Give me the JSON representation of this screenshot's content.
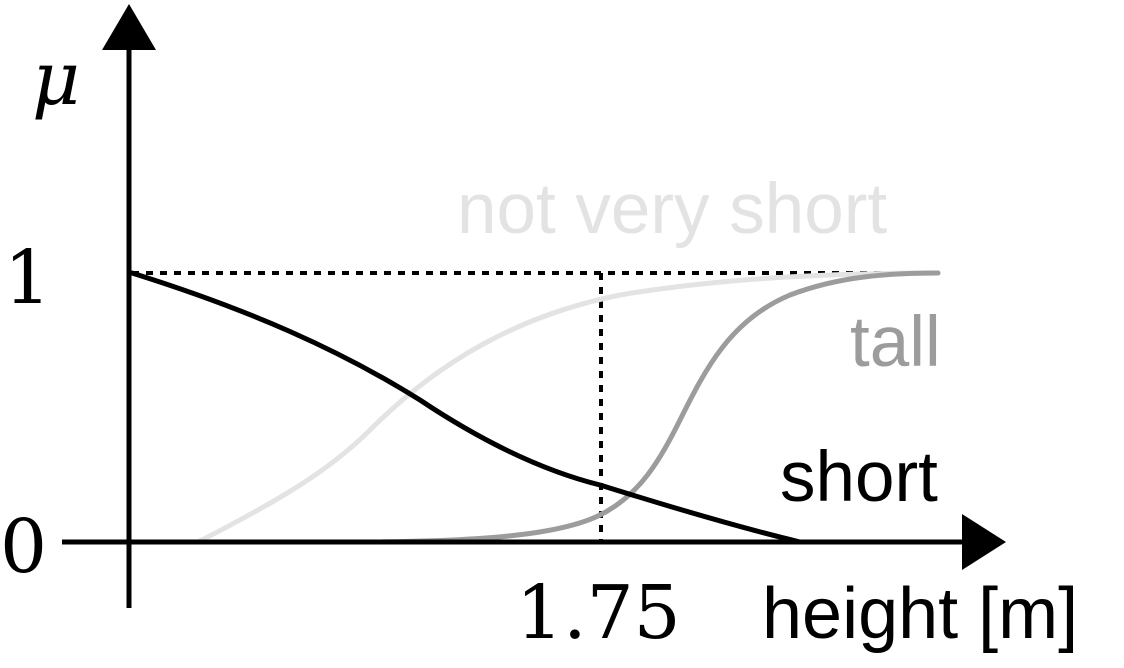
{
  "axes": {
    "y_label": "μ",
    "y_tick_high": "1",
    "y_tick_low": "0",
    "x_tick": "1.75",
    "x_label": "height [m]"
  },
  "curves": {
    "not_very_short": {
      "label": "not very short",
      "color": "#e3e3e3"
    },
    "tall": {
      "label": "tall",
      "color": "#9c9c9c"
    },
    "short": {
      "label": "short",
      "color": "#000000"
    }
  }
}
